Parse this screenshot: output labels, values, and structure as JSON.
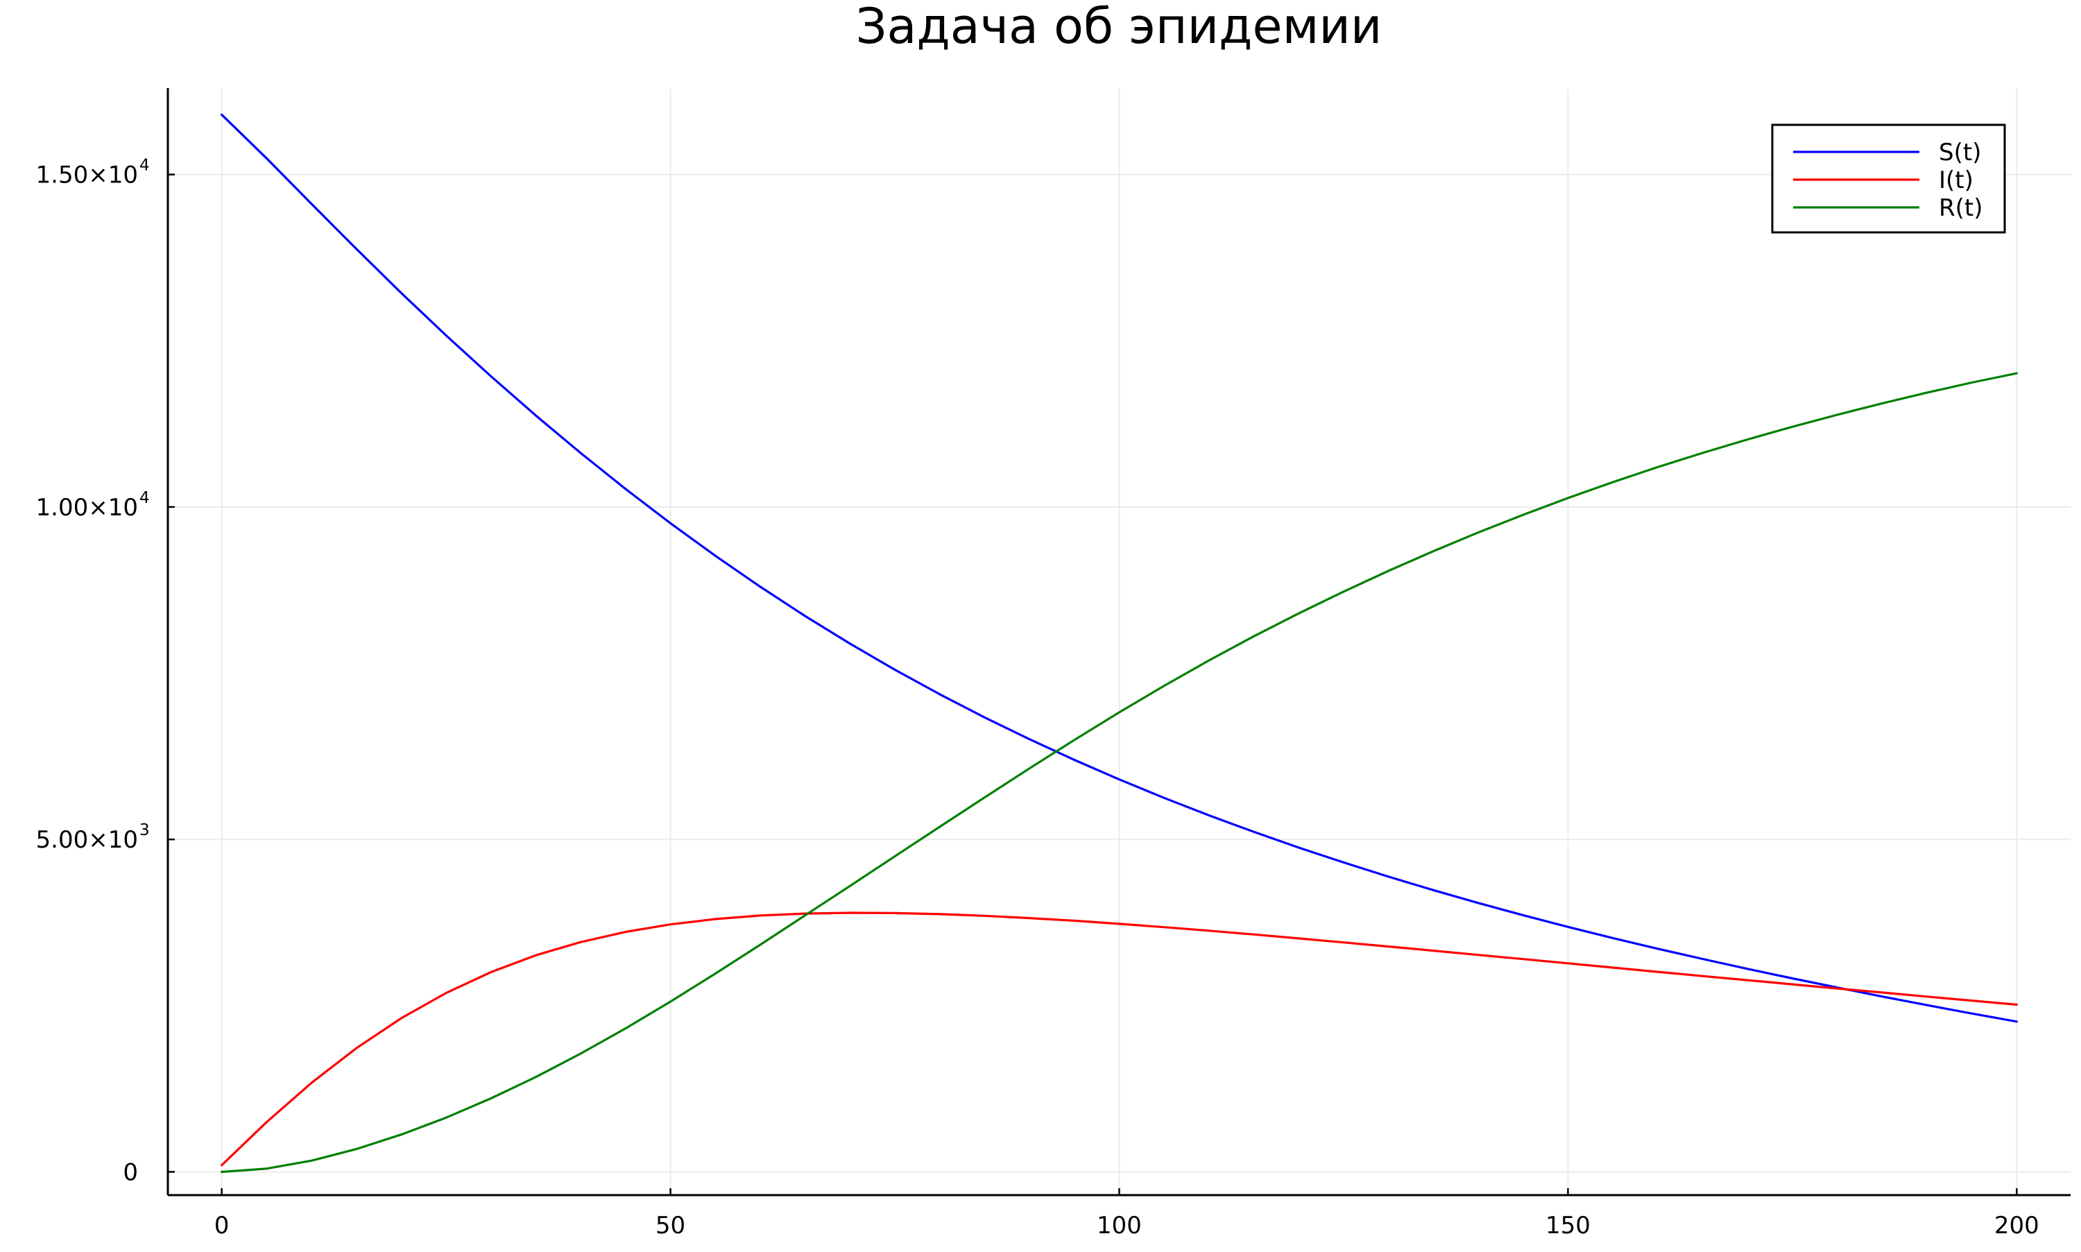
{
  "chart_data": {
    "type": "line",
    "title": "Задача об эпидемии",
    "xlabel": "",
    "ylabel": "",
    "xlim": [
      -6,
      206
    ],
    "ylim": [
      -350,
      16300
    ],
    "grid": true,
    "legend_position": "top-right",
    "x_ticks": [
      {
        "value": 0,
        "label": "0"
      },
      {
        "value": 50,
        "label": "50"
      },
      {
        "value": 100,
        "label": "100"
      },
      {
        "value": 150,
        "label": "150"
      },
      {
        "value": 200,
        "label": "200"
      }
    ],
    "y_ticks": [
      {
        "value": 0,
        "label": "0",
        "mantissa": "",
        "exponent": ""
      },
      {
        "value": 5000,
        "label": "5.00×10^3",
        "mantissa": "5.00×10",
        "exponent": "3"
      },
      {
        "value": 10000,
        "label": "1.00×10^4",
        "mantissa": "1.00×10",
        "exponent": "4"
      },
      {
        "value": 15000,
        "label": "1.50×10^4",
        "mantissa": "1.50×10",
        "exponent": "4"
      }
    ],
    "x": [
      0,
      5,
      10,
      15,
      20,
      25,
      30,
      35,
      40,
      45,
      50,
      55,
      60,
      65,
      70,
      75,
      80,
      85,
      90,
      95,
      100,
      105,
      110,
      115,
      120,
      125,
      130,
      135,
      140,
      145,
      150,
      155,
      160,
      165,
      170,
      175,
      180,
      185,
      190,
      195,
      200
    ],
    "series": [
      {
        "name": "S(t)",
        "color": "#0000ff",
        "values": [
          15900,
          15244,
          14559,
          13882,
          13218,
          12580,
          11965,
          11375,
          10810,
          10270,
          9755,
          9265,
          8800,
          8360,
          7945,
          7553,
          7183,
          6835,
          6507,
          6196,
          5902,
          5625,
          5362,
          5113,
          4877,
          4653,
          4440,
          4237,
          4044,
          3860,
          3684,
          3516,
          3356,
          3202,
          3053,
          2910,
          2772,
          2637,
          2507,
          2381,
          2260
        ]
      },
      {
        "name": "I(t)",
        "color": "#ff0000",
        "values": [
          100,
          748,
          1338,
          1860,
          2310,
          2690,
          3004,
          3257,
          3456,
          3609,
          3722,
          3802,
          3855,
          3885,
          3896,
          3892,
          3876,
          3851,
          3817,
          3777,
          3730,
          3680,
          3627,
          3570,
          3511,
          3450,
          3389,
          3326,
          3263,
          3200,
          3136,
          3072,
          3008,
          2945,
          2883,
          2820,
          2758,
          2697,
          2636,
          2575,
          2515
        ]
      },
      {
        "name": "R(t)",
        "color": "#008000",
        "values": [
          0,
          48,
          168,
          343,
          561,
          815,
          1105,
          1427,
          1779,
          2158,
          2561,
          2982,
          3416,
          3857,
          4300,
          4745,
          5190,
          5631,
          6068,
          6496,
          6911,
          7310,
          7692,
          8055,
          8400,
          8727,
          9039,
          9335,
          9616,
          9882,
          10134,
          10373,
          10600,
          10813,
          11015,
          11206,
          11386,
          11557,
          11719,
          11871,
          12010
        ]
      }
    ]
  }
}
